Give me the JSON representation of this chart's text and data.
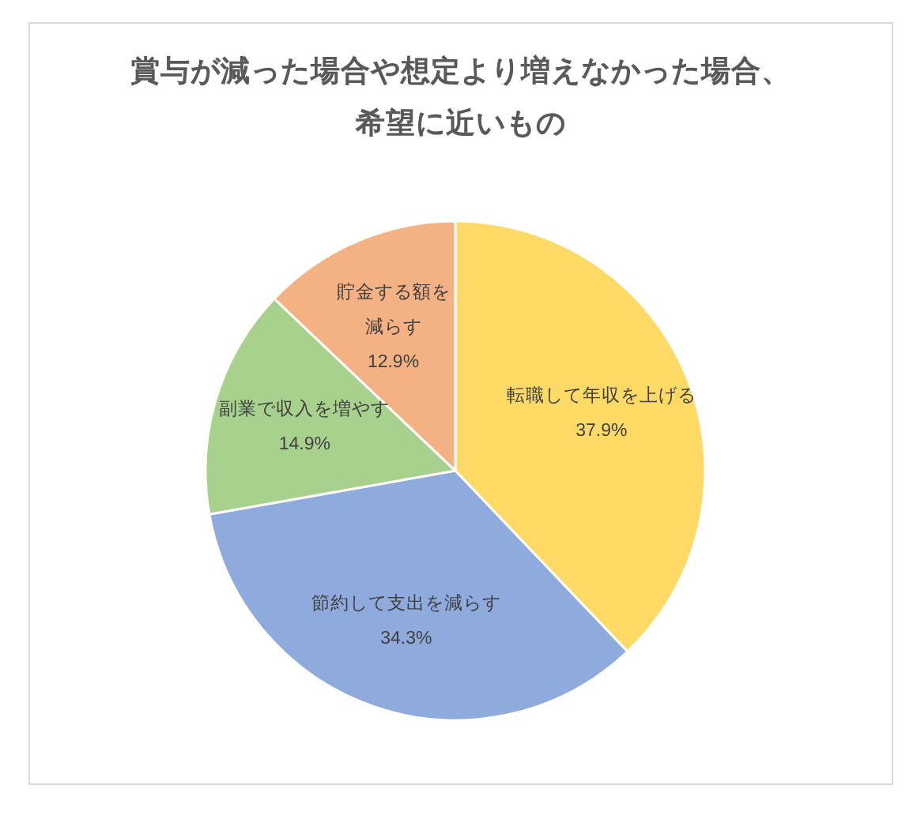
{
  "chart_data": {
    "type": "pie",
    "title": "賞与が減った場合や想定より増えなかった場合、希望に近いもの",
    "categories": [
      "転職して年収を上げる",
      "節約して支出を減らす",
      "副業で収入を増やす",
      "貯金する額を減らす"
    ],
    "values": [
      37.9,
      34.3,
      14.9,
      12.9
    ],
    "colors": [
      "#ffd966",
      "#8faadc",
      "#a9d18e",
      "#f4b183"
    ],
    "value_labels": [
      "37.9%",
      "34.3%",
      "14.9%",
      "12.9%"
    ]
  }
}
